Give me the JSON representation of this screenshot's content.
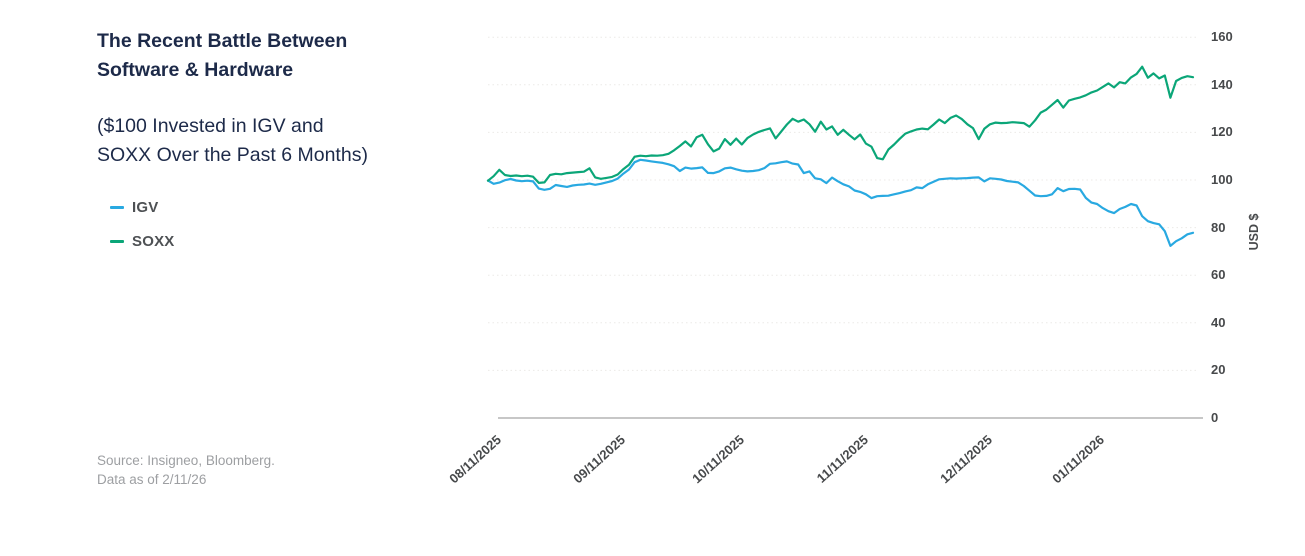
{
  "panel": {
    "title_lines": [
      "The Recent Battle Between",
      "Software & Hardware"
    ],
    "subtitle_lines": [
      "($100 Invested in IGV and",
      "SOXX Over the Past 6 Months)"
    ],
    "source_lines": [
      "Source: Insigneo, Bloomberg.",
      "Data as of 2/11/26"
    ]
  },
  "colors": {
    "title_navy": "#1d2a49",
    "igv_blue": "#29a9e1",
    "soxx_green": "#0ba678",
    "tick_label": "#47494b",
    "legend_label": "#4e5154",
    "grid_dotted": "#eceae7",
    "axis_line": "#c7c7c7",
    "source_gray": "#9d9fa2"
  },
  "chart_data": {
    "type": "line",
    "title": "The Recent Battle Between Software & Hardware",
    "subtitle": "($100 Invested in IGV and SOXX Over the Past 6 Months)",
    "xlabel": "",
    "ylabel": "USD $",
    "ylim": [
      0,
      160
    ],
    "y_ticks": [
      0,
      20,
      40,
      60,
      80,
      100,
      120,
      140,
      160
    ],
    "x_tick_labels": [
      "08/11/2025",
      "09/11/2025",
      "10/11/2025",
      "11/11/2025",
      "12/11/2025",
      "01/11/2026"
    ],
    "x_tick_day_index": [
      0,
      22,
      43,
      65,
      87,
      107
    ],
    "n_points": 126,
    "grid": "dotted horizontal lines at each y tick, solid baseline at 0",
    "legend_position": "left panel",
    "y_axis_side": "right",
    "series": [
      {
        "name": "IGV",
        "color": "#29a9e1",
        "values": [
          99.8,
          98.4,
          98.9,
          99.9,
          100.4,
          99.8,
          99.5,
          99.7,
          99.4,
          96.4,
          95.9,
          96.3,
          97.9,
          97.5,
          97.1,
          97.7,
          98.0,
          98.1,
          98.5,
          98.0,
          98.4,
          99.0,
          99.6,
          100.6,
          102.7,
          104.4,
          107.5,
          108.5,
          108.2,
          107.8,
          107.5,
          107.2,
          106.6,
          105.8,
          103.8,
          105.2,
          104.8,
          105.0,
          105.3,
          103.0,
          102.9,
          103.6,
          104.9,
          105.2,
          104.5,
          103.9,
          103.6,
          103.8,
          104.1,
          105.0,
          106.8,
          107.0,
          107.5,
          107.8,
          106.9,
          106.5,
          102.9,
          103.6,
          100.7,
          100.3,
          98.7,
          101.0,
          99.5,
          98.2,
          97.3,
          95.6,
          95.0,
          94.0,
          92.4,
          93.2,
          93.3,
          93.4,
          94.0,
          94.5,
          95.2,
          95.7,
          96.9,
          96.6,
          98.2,
          99.3,
          100.3,
          100.5,
          100.7,
          100.6,
          100.7,
          100.8,
          101.0,
          101.1,
          99.4,
          100.7,
          100.5,
          100.2,
          99.6,
          99.3,
          99.0,
          97.5,
          95.5,
          93.5,
          93.2,
          93.3,
          94.0,
          96.6,
          95.3,
          96.2,
          96.3,
          96.0,
          92.5,
          90.5,
          89.9,
          88.2,
          86.9,
          86.1,
          87.8,
          88.7,
          89.9,
          89.3,
          84.8,
          82.7,
          81.9,
          81.4,
          78.5,
          72.3,
          74.3,
          75.5,
          77.2,
          77.8
        ]
      },
      {
        "name": "SOXX",
        "color": "#0ba678",
        "values": [
          99.7,
          101.6,
          104.3,
          102.1,
          101.7,
          101.9,
          101.6,
          101.8,
          101.4,
          98.8,
          99.0,
          102.1,
          102.6,
          102.4,
          102.9,
          103.1,
          103.3,
          103.5,
          104.9,
          101.1,
          100.5,
          100.9,
          101.3,
          102.3,
          104.6,
          106.4,
          109.8,
          110.2,
          110.0,
          110.3,
          110.2,
          110.4,
          111.0,
          112.5,
          114.3,
          116.2,
          114.1,
          118.0,
          119.0,
          115.0,
          112.0,
          113.2,
          117.2,
          114.8,
          117.4,
          114.9,
          117.6,
          119.1,
          120.2,
          121.0,
          121.7,
          117.5,
          120.4,
          123.3,
          125.7,
          124.5,
          125.4,
          123.4,
          120.3,
          124.5,
          121.2,
          122.5,
          119.0,
          121.1,
          119.0,
          117.1,
          119.1,
          115.3,
          114.0,
          109.2,
          108.7,
          112.8,
          114.9,
          117.3,
          119.5,
          120.4,
          121.2,
          121.6,
          121.3,
          123.3,
          125.4,
          123.9,
          126.1,
          127.1,
          125.6,
          123.4,
          121.8,
          117.2,
          121.5,
          123.4,
          124.1,
          123.9,
          124.0,
          124.3,
          124.1,
          123.9,
          122.4,
          125.1,
          128.3,
          129.6,
          131.6,
          133.6,
          130.4,
          133.4,
          134.1,
          134.7,
          135.6,
          136.8,
          137.6,
          139.1,
          140.6,
          138.9,
          141.1,
          140.6,
          143.1,
          144.6,
          147.6,
          143.0,
          144.8,
          142.7,
          143.9,
          134.6,
          141.6,
          142.9,
          143.6,
          143.2
        ]
      }
    ]
  }
}
